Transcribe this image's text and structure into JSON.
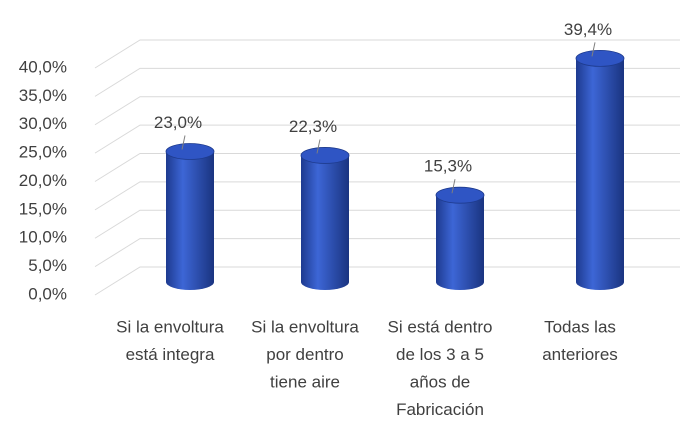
{
  "chart_data": {
    "type": "bar3d",
    "categories": [
      [
        "Si la envoltura",
        "está integra"
      ],
      [
        "Si la envoltura",
        "por dentro",
        "tiene aire"
      ],
      [
        "Si está dentro",
        "de los  3 a 5",
        "años de",
        "Fabricación"
      ],
      [
        "Todas las",
        "anteriores"
      ]
    ],
    "values": [
      23.0,
      22.3,
      15.3,
      39.4
    ],
    "value_labels": [
      "23,0%",
      "22,3%",
      "15,3%",
      "39,4%"
    ],
    "color": "#2f55c4",
    "ylim": [
      0,
      40
    ],
    "yticks": [
      {
        "value": 0,
        "label": "0,0%"
      },
      {
        "value": 5,
        "label": "5,0%"
      },
      {
        "value": 10,
        "label": "10,0%"
      },
      {
        "value": 15,
        "label": "15,0%"
      },
      {
        "value": 20,
        "label": "20,0%"
      },
      {
        "value": 25,
        "label": "25,0%"
      },
      {
        "value": 30,
        "label": "30,0%"
      },
      {
        "value": 35,
        "label": "35,0%"
      },
      {
        "value": 40,
        "label": "40,0%"
      }
    ],
    "grid": true
  }
}
